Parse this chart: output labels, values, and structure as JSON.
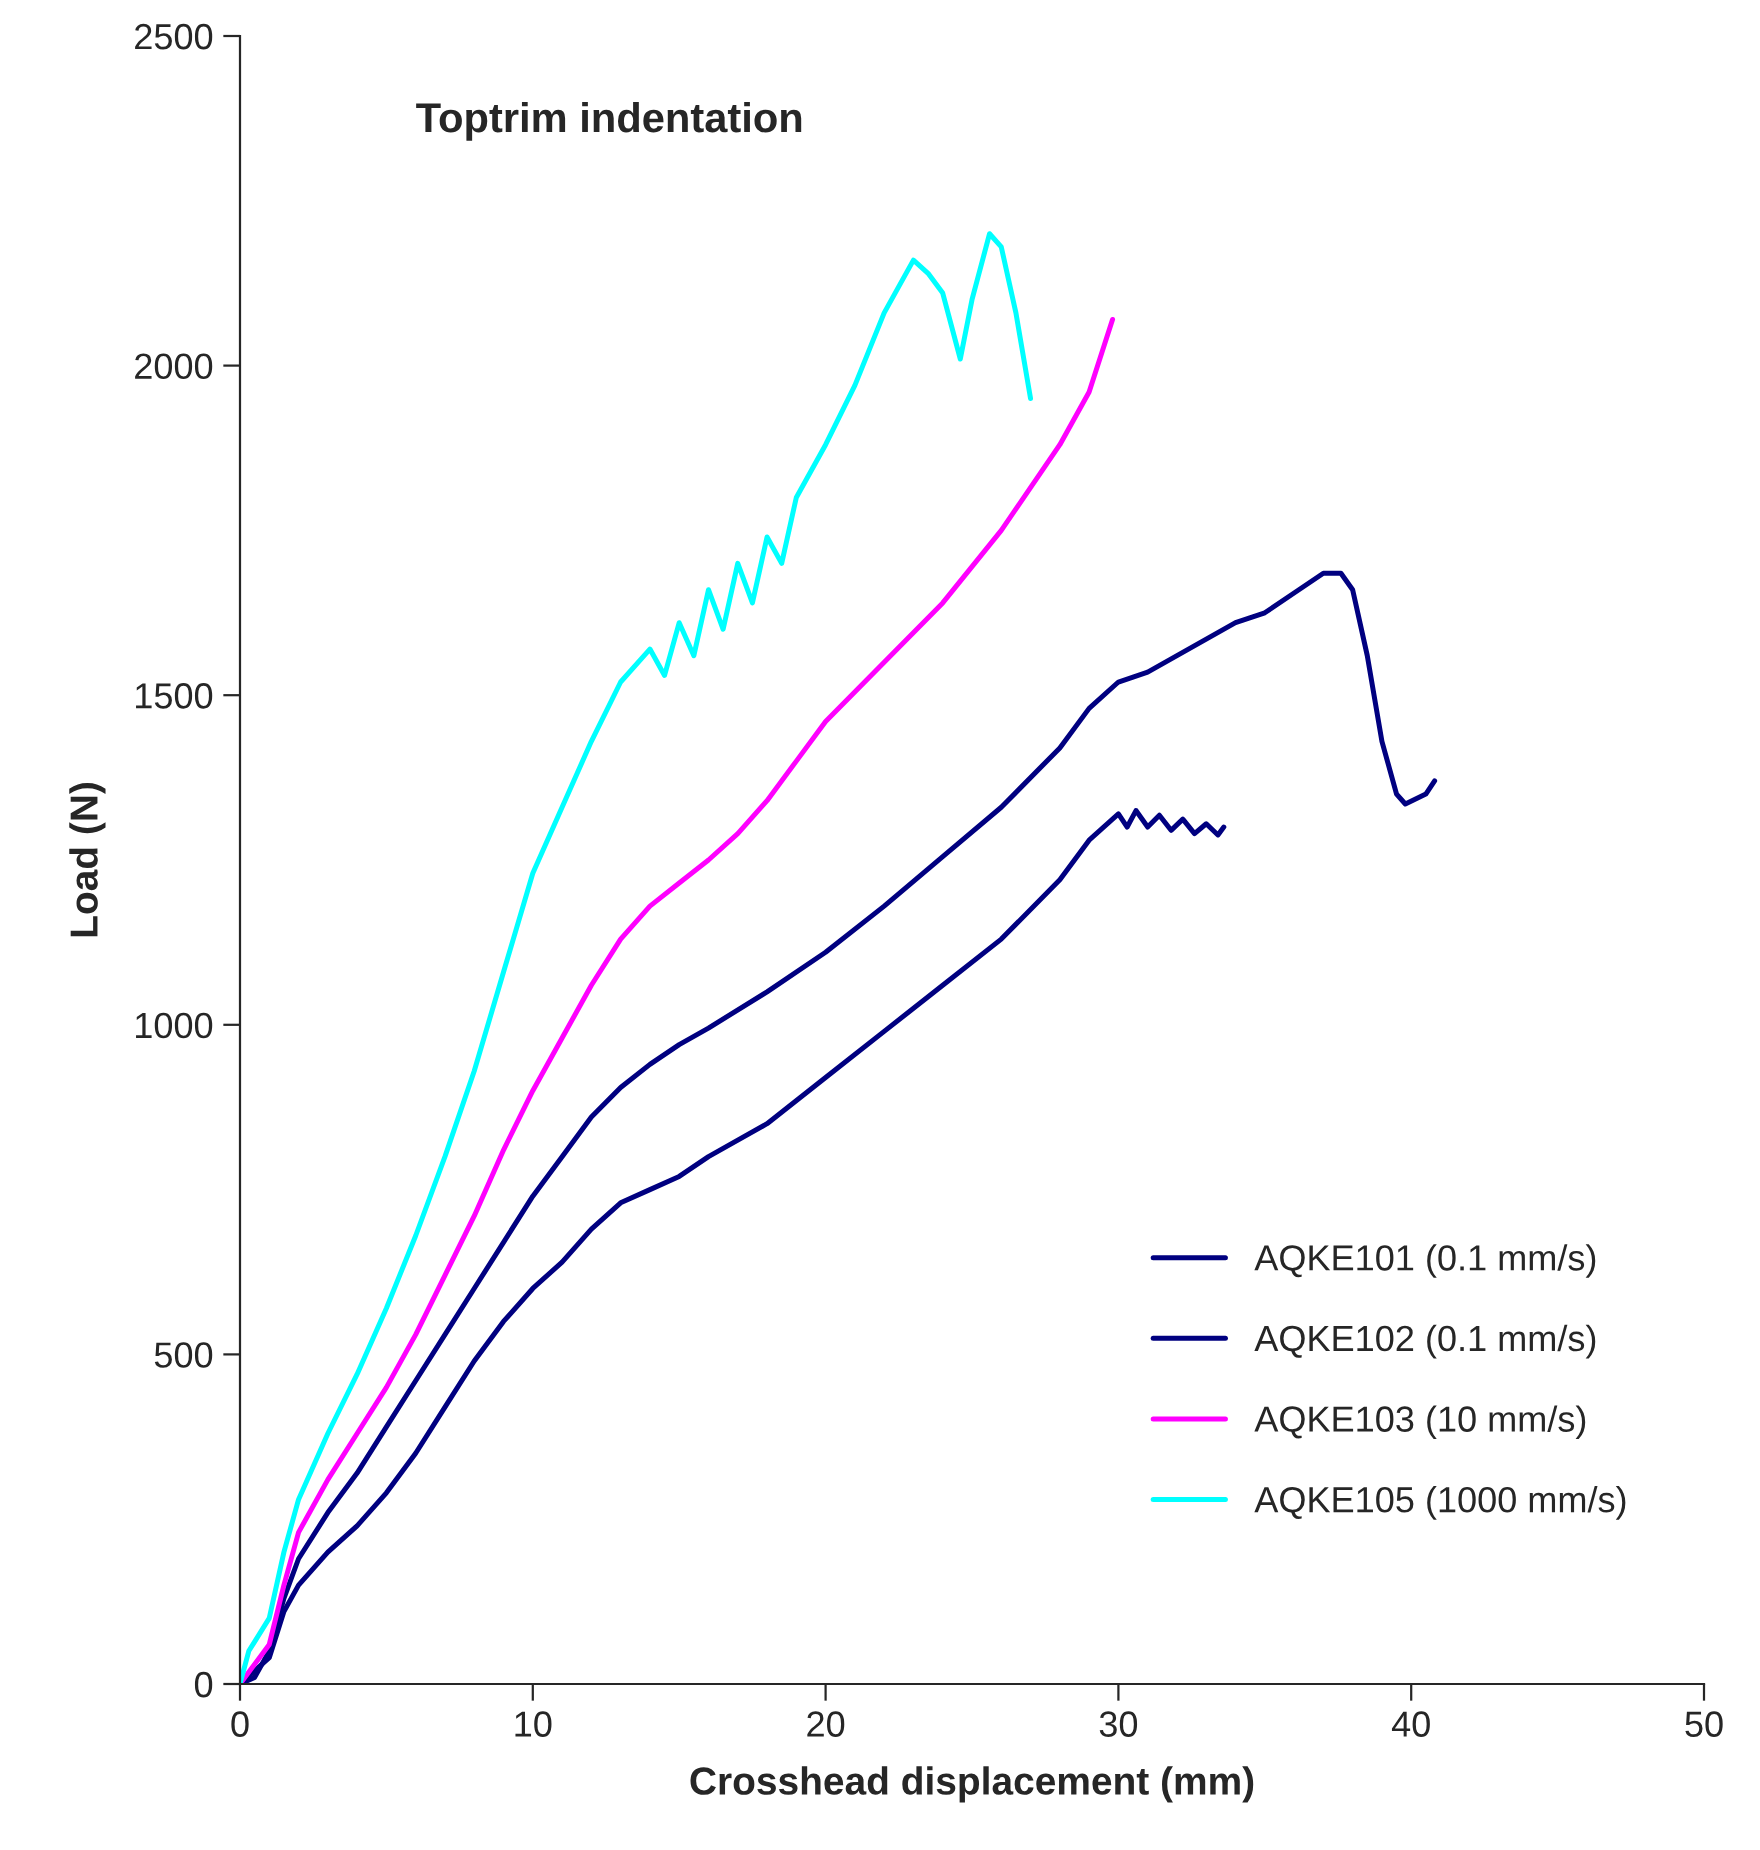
{
  "chart_data": {
    "type": "line",
    "title": "Toptrim indentation",
    "xlabel": "Crosshead displacement (mm)",
    "ylabel": "Load (N)",
    "xlim": [
      0,
      50
    ],
    "xticks": [
      0,
      10,
      20,
      30,
      40,
      50
    ],
    "ylim": [
      0,
      2500
    ],
    "yticks": [
      0,
      500,
      1000,
      1500,
      2000,
      2500
    ],
    "grid": false,
    "legend": "bottom right",
    "marker": "none",
    "line_style": "solid",
    "series": [
      {
        "name": "AQKE101 (0.1 mm/s)",
        "color": "#000080",
        "x": [
          0,
          0.5,
          1,
          1.5,
          2,
          3,
          4,
          5,
          6,
          7,
          8,
          9,
          10,
          11,
          12,
          13,
          14,
          15,
          16,
          18,
          20,
          22,
          24,
          26,
          28,
          29,
          30,
          31,
          32,
          34,
          35,
          36,
          37,
          37.6,
          38,
          38.5,
          39,
          39.5,
          39.8,
          40.5,
          40.8
        ],
        "values": [
          0,
          10,
          50,
          130,
          190,
          260,
          320,
          390,
          460,
          530,
          600,
          670,
          740,
          800,
          860,
          905,
          940,
          970,
          995,
          1050,
          1110,
          1180,
          1255,
          1330,
          1420,
          1480,
          1520,
          1535,
          1560,
          1610,
          1625,
          1655,
          1685,
          1685,
          1660,
          1560,
          1430,
          1350,
          1335,
          1350,
          1370
        ]
      },
      {
        "name": "AQKE102 (0.1 mm/s)",
        "color": "#000080",
        "x": [
          0,
          1,
          1.5,
          2,
          3,
          4,
          5,
          6,
          7,
          8,
          9,
          10,
          11,
          12,
          13,
          14,
          15,
          16,
          18,
          20,
          22,
          24,
          26,
          28,
          29,
          30,
          30.3,
          30.6,
          31,
          31.4,
          31.8,
          32.2,
          32.6,
          33,
          33.4,
          33.6
        ],
        "values": [
          0,
          40,
          110,
          150,
          200,
          240,
          290,
          350,
          420,
          490,
          550,
          600,
          640,
          690,
          730,
          750,
          770,
          800,
          850,
          920,
          990,
          1060,
          1130,
          1220,
          1280,
          1320,
          1300,
          1325,
          1300,
          1318,
          1295,
          1312,
          1290,
          1305,
          1288,
          1300
        ]
      },
      {
        "name": "AQKE103 (10 mm/s)",
        "color": "#ff00ff",
        "x": [
          0,
          1,
          1.5,
          2,
          3,
          4,
          5,
          6,
          7,
          8,
          9,
          10,
          11,
          12,
          13,
          14,
          15,
          16,
          17,
          18,
          19,
          20,
          22,
          24,
          26,
          28,
          29,
          29.8
        ],
        "values": [
          0,
          60,
          150,
          230,
          310,
          380,
          450,
          530,
          620,
          710,
          810,
          900,
          980,
          1060,
          1130,
          1180,
          1215,
          1250,
          1290,
          1340,
          1400,
          1460,
          1550,
          1640,
          1750,
          1880,
          1960,
          2070
        ]
      },
      {
        "name": "AQKE105 (1000 mm/s)",
        "color": "#00ffff",
        "x": [
          0,
          0.3,
          1,
          1.5,
          2,
          3,
          4,
          5,
          6,
          7,
          8,
          9,
          10,
          11,
          12,
          13,
          14,
          14.5,
          15,
          15.5,
          16,
          16.5,
          17,
          17.5,
          18,
          18.5,
          19,
          20,
          21,
          22,
          23,
          23.5,
          24,
          24.6,
          25,
          25.6,
          26,
          26.5,
          27
        ],
        "values": [
          0,
          50,
          100,
          200,
          280,
          380,
          470,
          570,
          680,
          800,
          930,
          1080,
          1230,
          1330,
          1430,
          1520,
          1570,
          1530,
          1610,
          1560,
          1660,
          1600,
          1700,
          1640,
          1740,
          1700,
          1800,
          1880,
          1970,
          2080,
          2160,
          2140,
          2110,
          2010,
          2100,
          2200,
          2180,
          2080,
          1950
        ]
      }
    ]
  }
}
